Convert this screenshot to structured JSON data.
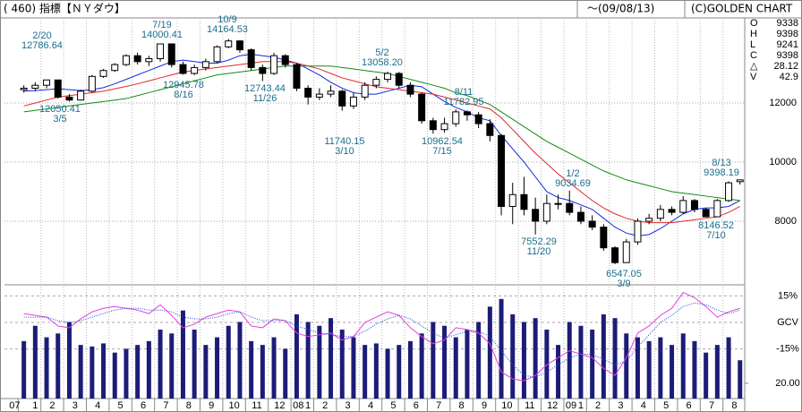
{
  "header": {
    "title": "( 460) 指標【ＮＹダウ】",
    "date": "～(09/08/13)",
    "copyright": "(C)GOLDEN CHART"
  },
  "stats": [
    {
      "label": "O",
      "value": 9338
    },
    {
      "label": "H",
      "value": 9398
    },
    {
      "label": "L",
      "value": 9241
    },
    {
      "label": "C",
      "value": 9398
    },
    {
      "label": "△",
      "value": 28.12
    },
    {
      "label": "V",
      "value": 42.9
    }
  ],
  "chart_data": [
    {
      "type": "candlestick",
      "ylim": [
        5848,
        14879
      ],
      "yticks": [
        8000,
        10000,
        12000
      ],
      "grid": true,
      "up_color": "#ffffff",
      "down_color": "#000000",
      "open": [
        12450,
        12500,
        12600,
        12780,
        12200,
        12100,
        12400,
        12900,
        13100,
        13300,
        13600,
        13400,
        13500,
        14000,
        13300,
        13000,
        13200,
        13400,
        13900,
        14100,
        13800,
        13200,
        13000,
        13600,
        13300,
        12500,
        12200,
        12300,
        12400,
        11900,
        12200,
        12600,
        12800,
        13000,
        12600,
        12300,
        11400,
        11100,
        11300,
        11700,
        11600,
        11300,
        10900,
        8500,
        8900,
        8400,
        8000,
        8600,
        8600,
        8300,
        8000,
        7800,
        7100,
        6600,
        7300,
        8000,
        8100,
        8400,
        8300,
        8700,
        8400,
        8150,
        8700,
        9338
      ],
      "high": [
        12600,
        12700,
        12750,
        12786.64,
        12300,
        12450,
        12950,
        13150,
        13350,
        13650,
        13700,
        13600,
        13990,
        14000.41,
        13400,
        13300,
        13500,
        13950,
        14164.53,
        14120,
        13850,
        13300,
        13700,
        13650,
        13350,
        12600,
        12500,
        12600,
        12450,
        12350,
        12700,
        12900,
        13058.2,
        13050,
        12700,
        12350,
        11500,
        11500,
        11782.95,
        11750,
        11700,
        11450,
        10950,
        9300,
        9500,
        8800,
        8900,
        8900,
        9034.69,
        8500,
        8200,
        7900,
        7150,
        7400,
        8100,
        8250,
        8550,
        8500,
        8850,
        8750,
        8450,
        8750,
        9350,
        9398.19
      ],
      "low": [
        12350,
        12400,
        12500,
        12150,
        12050.41,
        12080,
        12350,
        12850,
        13050,
        13250,
        13300,
        13250,
        13400,
        13200,
        12960,
        12945.78,
        13100,
        13350,
        13850,
        13700,
        13100,
        12743.44,
        12950,
        13200,
        12400,
        11950,
        12100,
        12200,
        11740.15,
        11800,
        12100,
        12500,
        12700,
        12500,
        12200,
        11300,
        10962.54,
        11000,
        11200,
        11400,
        11150,
        10700,
        8200,
        7900,
        8200,
        7552.29,
        7900,
        8400,
        8200,
        7900,
        7700,
        7000,
        6547.05,
        6600,
        7200,
        7900,
        8000,
        8200,
        8250,
        8300,
        8146.52,
        8160,
        8650,
        9241
      ],
      "close": [
        12500,
        12600,
        12780,
        12200,
        12100,
        12400,
        12900,
        13100,
        13300,
        13600,
        13400,
        13500,
        14000,
        13300,
        13000,
        13200,
        13400,
        13900,
        14100,
        13800,
        13200,
        13000,
        13600,
        13300,
        12500,
        12200,
        12300,
        12400,
        11900,
        12200,
        12600,
        12800,
        13000,
        12600,
        12300,
        11400,
        11100,
        11300,
        11700,
        11600,
        11300,
        10900,
        8500,
        8900,
        8400,
        8000,
        8600,
        8600,
        8300,
        8000,
        7800,
        7100,
        6600,
        7300,
        8000,
        8100,
        8400,
        8300,
        8700,
        8400,
        8150,
        8700,
        9300,
        9398
      ],
      "series": [
        {
          "color": "#1428e0",
          "values": [
            12400,
            12420,
            12450,
            12480,
            12450,
            12420,
            12450,
            12520,
            12650,
            12800,
            12950,
            13100,
            13250,
            13400,
            13450,
            13400,
            13350,
            13350,
            13450,
            13600,
            13650,
            13600,
            13550,
            13450,
            13350,
            13150,
            12950,
            12700,
            12500,
            12350,
            12300,
            12300,
            12400,
            12500,
            12600,
            12550,
            12300,
            12050,
            11850,
            11700,
            11500,
            11400,
            10900,
            10450,
            10000,
            9500,
            9000,
            8800,
            8700,
            8550,
            8400,
            8100,
            7800,
            7600,
            7500,
            7550,
            7750,
            8000,
            8250,
            8400,
            8450,
            8450,
            8500,
            8700
          ]
        },
        {
          "color": "#e02828",
          "values": [
            11900,
            12000,
            12100,
            12200,
            12250,
            12300,
            12350,
            12400,
            12480,
            12560,
            12650,
            12750,
            12850,
            12950,
            13050,
            13100,
            13150,
            13200,
            13250,
            13300,
            13350,
            13400,
            13400,
            13400,
            13350,
            13250,
            13150,
            13000,
            12850,
            12750,
            12650,
            12550,
            12500,
            12450,
            12400,
            12350,
            12300,
            12200,
            12100,
            12000,
            11900,
            11800,
            11500,
            11100,
            10700,
            10300,
            9950,
            9600,
            9300,
            9000,
            8700,
            8450,
            8250,
            8100,
            8000,
            7950,
            7950,
            7950,
            8000,
            8050,
            8100,
            8150,
            8300,
            8500
          ]
        },
        {
          "color": "#158a15",
          "values": [
            11700,
            11750,
            11800,
            11850,
            11900,
            11950,
            12000,
            12050,
            12100,
            12150,
            12250,
            12350,
            12450,
            12550,
            12650,
            12750,
            12850,
            12950,
            13000,
            13050,
            13100,
            13150,
            13200,
            13250,
            13250,
            13250,
            13250,
            13250,
            13200,
            13150,
            13100,
            13050,
            13000,
            12900,
            12800,
            12700,
            12600,
            12500,
            12350,
            12250,
            12100,
            11950,
            11700,
            11450,
            11200,
            10950,
            10700,
            10500,
            10300,
            10100,
            9900,
            9700,
            9550,
            9400,
            9300,
            9200,
            9100,
            9000,
            8950,
            8900,
            8850,
            8800,
            8750,
            8700
          ]
        }
      ],
      "annotations": [
        {
          "date": "2/20",
          "price": "12786.64"
        },
        {
          "price": "12050.41",
          "date": "3/5"
        },
        {
          "date": "7/19",
          "price": "14000.41"
        },
        {
          "price": "12945.78",
          "date": "8/16"
        },
        {
          "date": "10/9",
          "price": "14164.53"
        },
        {
          "price": "12743.44",
          "date": "11/26"
        },
        {
          "date": "5/2",
          "price": "13058.20"
        },
        {
          "price": "11740.15",
          "date": "3/10"
        },
        {
          "date": "8/11",
          "price": "11782.95"
        },
        {
          "price": "10962.54",
          "date": "7/15"
        },
        {
          "date": "1/2",
          "price": "9034.69"
        },
        {
          "price": "7552.29",
          "date": "11/20"
        },
        {
          "price": "6547.05",
          "date": "3/9"
        },
        {
          "price": "8146.52",
          "date": "7/10"
        },
        {
          "date": "8/13",
          "price": "9398.19"
        }
      ]
    },
    {
      "type": "bar",
      "ylim": [
        0,
        148.5
      ],
      "yticks": [
        {
          "value": 20,
          "label": "20.00"
        }
      ],
      "y2lim": [
        -43.1,
        21.3
      ],
      "y2ticks": [
        {
          "value": 15,
          "label": "15%"
        },
        {
          "value": 0,
          "label": "GCV"
        },
        {
          "value": -15,
          "label": "-15%"
        }
      ],
      "years": [
        "07",
        "08",
        "09"
      ],
      "months": [
        "1",
        "2",
        "3",
        "4",
        "5",
        "6",
        "7",
        "8",
        "9",
        "10",
        "11",
        "12",
        "1",
        "2",
        "3",
        "4",
        "5",
        "6",
        "7",
        "8",
        "9",
        "10",
        "11",
        "12",
        "1",
        "2",
        "3",
        "4",
        "5",
        "6",
        "7",
        "8"
      ],
      "series": [
        {
          "color": "#1c1c78",
          "values": [
            75,
            95,
            80,
            85,
            100,
            70,
            68,
            72,
            60,
            65,
            70,
            75,
            90,
            85,
            115,
            90,
            70,
            80,
            95,
            100,
            75,
            70,
            80,
            65,
            110,
            100,
            95,
            105,
            90,
            80,
            70,
            72,
            65,
            70,
            75,
            85,
            100,
            95,
            80,
            90,
            100,
            120,
            130,
            110,
            100,
            105,
            90,
            70,
            100,
            95,
            90,
            110,
            105,
            85,
            80,
            75,
            80,
            70,
            85,
            75,
            60,
            70,
            80,
            50
          ]
        },
        {
          "color": "#e040e0",
          "axis": "y2",
          "values": [
            5,
            4,
            3,
            -2,
            -3,
            2,
            6,
            8,
            9,
            8,
            7,
            5,
            10,
            4,
            -3,
            -1,
            3,
            5,
            7,
            6,
            -2,
            -3,
            2,
            1,
            -6,
            -8,
            -7,
            -6,
            -10,
            -8,
            0,
            3,
            6,
            4,
            -3,
            -8,
            -12,
            -10,
            -3,
            -4,
            -6,
            -12,
            -28,
            -32,
            -33,
            -30,
            -24,
            -20,
            -16,
            -18,
            -20,
            -26,
            -30,
            -20,
            -6,
            -2,
            4,
            8,
            17,
            14,
            9,
            3,
            6,
            8
          ]
        },
        {
          "color": "#2040d0",
          "axis": "y2",
          "dashed": true,
          "values": [
            3,
            3,
            3,
            1,
            0,
            1,
            3,
            5,
            7,
            8,
            8,
            7,
            7,
            6,
            3,
            2,
            2,
            3,
            5,
            6,
            3,
            1,
            1,
            1,
            -2,
            -4,
            -6,
            -7,
            -8,
            -8,
            -5,
            -1,
            2,
            4,
            2,
            -2,
            -6,
            -9,
            -7,
            -5,
            -5,
            -8,
            -16,
            -24,
            -30,
            -31,
            -28,
            -24,
            -20,
            -18,
            -18,
            -21,
            -24,
            -22,
            -14,
            -7,
            0,
            4,
            9,
            11,
            10,
            7,
            5,
            7
          ]
        }
      ]
    }
  ]
}
